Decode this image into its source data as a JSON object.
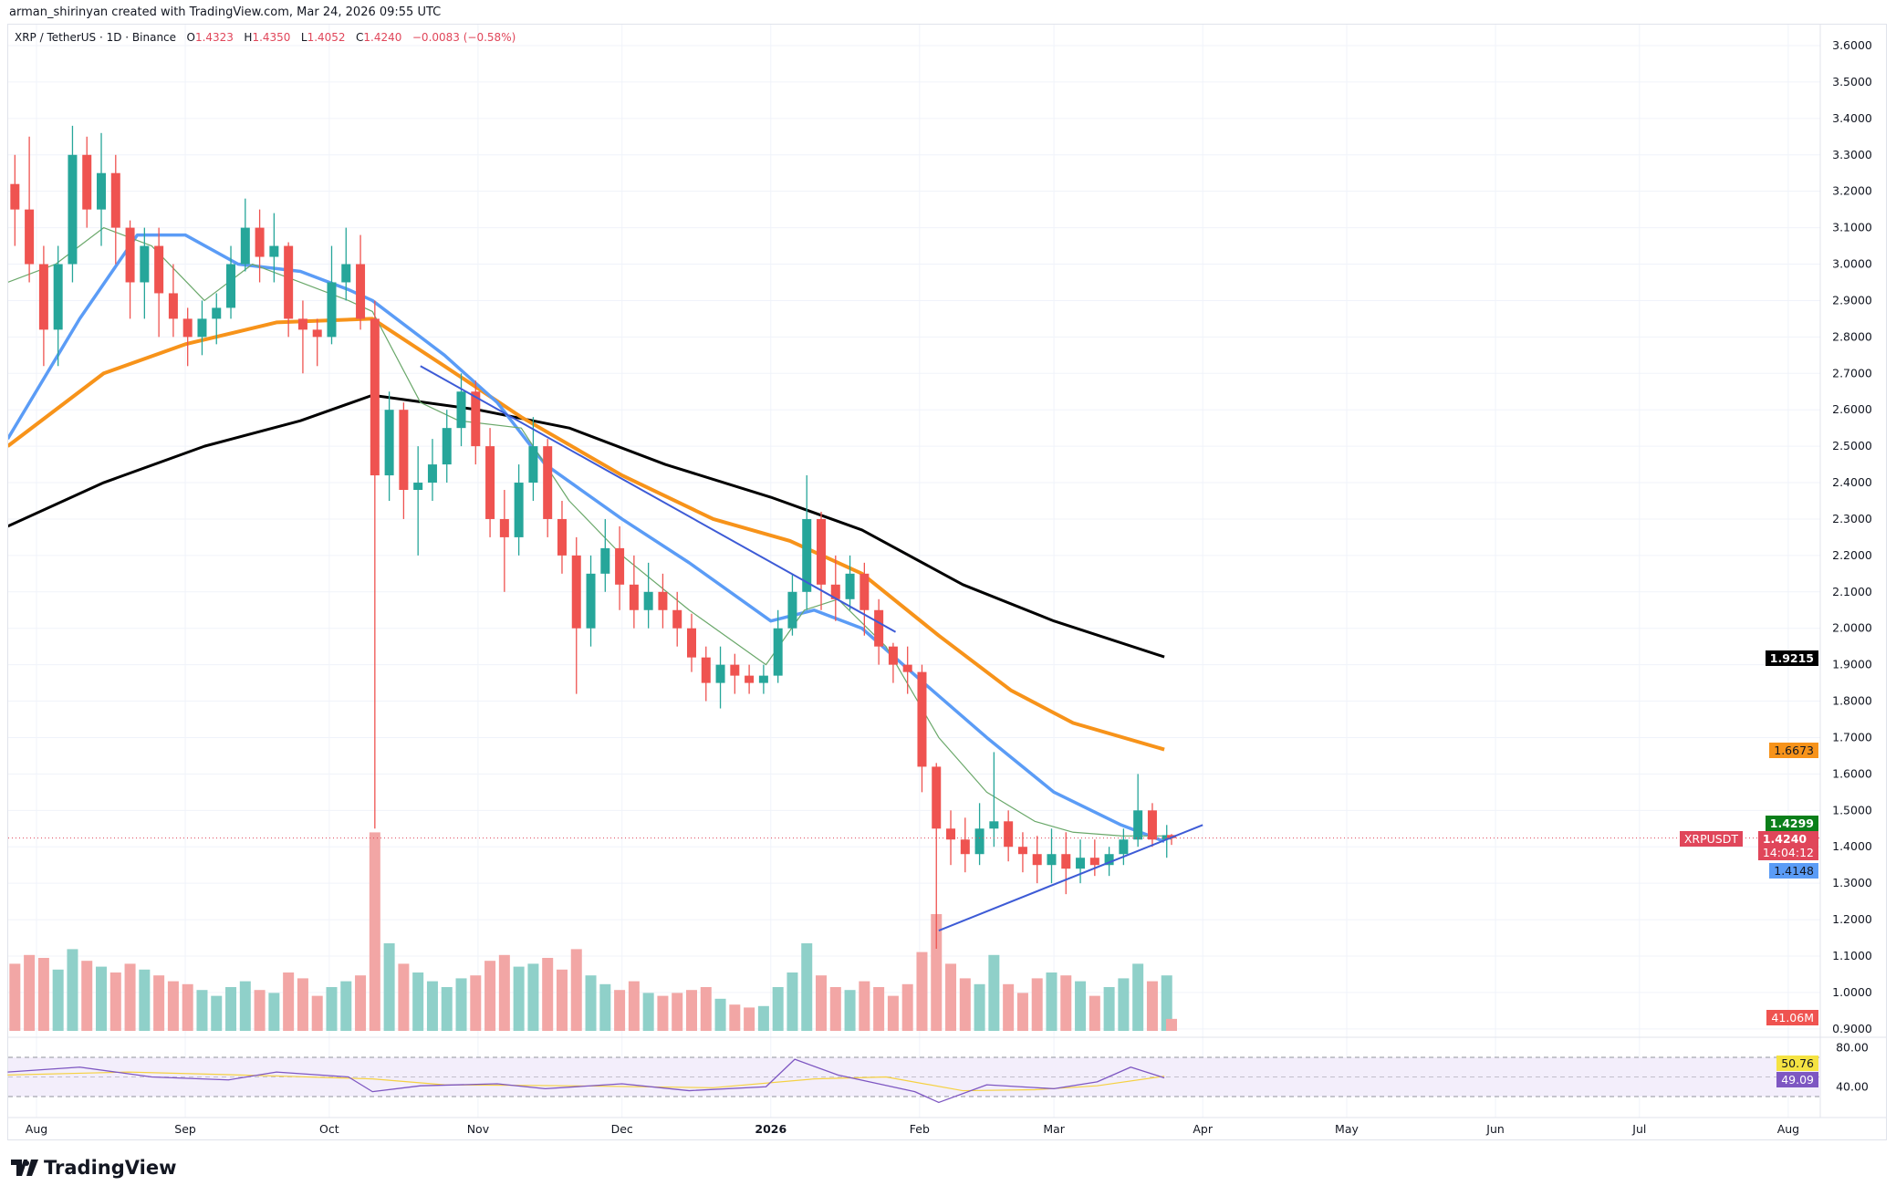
{
  "credit": "arman_shirinyan created with TradingView.com, Mar 24, 2026 09:55 UTC",
  "legend": {
    "symbol": "XRP / TetherUS · 1D · Binance",
    "o_label": "O",
    "o": "1.4323",
    "h_label": "H",
    "h": "1.4350",
    "l_label": "L",
    "l": "1.4052",
    "c_label": "C",
    "c": "1.4240",
    "change": "−0.0083 (−0.58%)"
  },
  "badges": {
    "ma200": "1.9215",
    "ma100": "1.6673",
    "ma20": "1.4299",
    "price": "1.4240",
    "countdown": "14:04:12",
    "ma50": "1.4148",
    "symbol_tag": "XRPUSDT",
    "volume": "41.06M",
    "rsi_ma": "50.76",
    "rsi": "49.09"
  },
  "brand": "TradingView",
  "colors": {
    "up": "#26a69a",
    "down": "#ef5350",
    "vol_up": "#8fd0c9",
    "vol_down": "#f2a6a5",
    "ma200": "#000000",
    "ma100": "#f7931a",
    "ma50": "#5b9cf6",
    "ma20": "#6aa86a",
    "trend": "#3d5bd6",
    "rsi": "#7e57c2",
    "rsi_ma": "#f5d142"
  },
  "chart_data": {
    "type": "candlestick",
    "symbol": "XRPUSDT",
    "price_ticks": [
      "3.6000",
      "3.5000",
      "3.4000",
      "3.3000",
      "3.2000",
      "3.1000",
      "3.0000",
      "2.9000",
      "2.8000",
      "2.7000",
      "2.6000",
      "2.5000",
      "2.4000",
      "2.3000",
      "2.2000",
      "2.1000",
      "2.0000",
      "1.9000",
      "1.8000",
      "1.7000",
      "1.6000",
      "1.5000",
      "1.4000",
      "1.3000",
      "1.2000",
      "1.1000",
      "1.0000",
      "0.9000"
    ],
    "ylim": [
      0.9,
      3.6
    ],
    "time_ticks": [
      {
        "label": "Aug",
        "date": "2025-08-01"
      },
      {
        "label": "Sep",
        "date": "2025-09-01"
      },
      {
        "label": "Oct",
        "date": "2025-10-01"
      },
      {
        "label": "Nov",
        "date": "2025-11-01"
      },
      {
        "label": "Dec",
        "date": "2025-12-01"
      },
      {
        "label": "2026",
        "date": "2026-01-01"
      },
      {
        "label": "Feb",
        "date": "2026-02-01"
      },
      {
        "label": "Mar",
        "date": "2026-03-01"
      },
      {
        "label": "Apr",
        "date": "2026-04-01"
      },
      {
        "label": "May",
        "date": "2026-05-01"
      },
      {
        "label": "Jun",
        "date": "2026-06-01"
      },
      {
        "label": "Jul",
        "date": "2026-07-01"
      },
      {
        "label": "Aug",
        "date": "2026-08-01"
      }
    ],
    "candles_columns": [
      "date",
      "open",
      "high",
      "low",
      "close",
      "volume_M"
    ],
    "candles": [
      [
        "2025-07-26",
        3.22,
        3.3,
        3.05,
        3.15,
        230
      ],
      [
        "2025-07-29",
        3.15,
        3.35,
        2.95,
        3.0,
        260
      ],
      [
        "2025-08-01",
        3.0,
        3.05,
        2.72,
        2.82,
        250
      ],
      [
        "2025-08-04",
        2.82,
        3.05,
        2.72,
        3.0,
        210
      ],
      [
        "2025-08-07",
        3.0,
        3.38,
        2.95,
        3.3,
        280
      ],
      [
        "2025-08-10",
        3.3,
        3.35,
        3.1,
        3.15,
        240
      ],
      [
        "2025-08-13",
        3.15,
        3.36,
        3.05,
        3.25,
        220
      ],
      [
        "2025-08-16",
        3.25,
        3.3,
        3.0,
        3.1,
        200
      ],
      [
        "2025-08-19",
        3.1,
        3.12,
        2.85,
        2.95,
        230
      ],
      [
        "2025-08-22",
        2.95,
        3.1,
        2.85,
        3.05,
        210
      ],
      [
        "2025-08-25",
        3.05,
        3.1,
        2.8,
        2.92,
        190
      ],
      [
        "2025-08-28",
        2.92,
        3.0,
        2.8,
        2.85,
        170
      ],
      [
        "2025-08-31",
        2.85,
        2.88,
        2.72,
        2.8,
        160
      ],
      [
        "2025-09-03",
        2.8,
        2.9,
        2.75,
        2.85,
        140
      ],
      [
        "2025-09-06",
        2.85,
        2.92,
        2.78,
        2.88,
        120
      ],
      [
        "2025-09-09",
        2.88,
        3.05,
        2.85,
        3.0,
        150
      ],
      [
        "2025-09-12",
        3.0,
        3.18,
        2.98,
        3.1,
        170
      ],
      [
        "2025-09-15",
        3.1,
        3.15,
        2.95,
        3.02,
        140
      ],
      [
        "2025-09-18",
        3.02,
        3.14,
        2.95,
        3.05,
        130
      ],
      [
        "2025-09-21",
        3.05,
        3.06,
        2.8,
        2.85,
        200
      ],
      [
        "2025-09-24",
        2.85,
        2.9,
        2.7,
        2.82,
        180
      ],
      [
        "2025-09-27",
        2.82,
        2.85,
        2.72,
        2.8,
        120
      ],
      [
        "2025-09-30",
        2.8,
        3.05,
        2.78,
        2.95,
        150
      ],
      [
        "2025-10-03",
        2.95,
        3.1,
        2.9,
        3.0,
        170
      ],
      [
        "2025-10-06",
        3.0,
        3.08,
        2.82,
        2.85,
        190
      ],
      [
        "2025-10-09",
        2.85,
        2.9,
        1.45,
        2.42,
        680
      ],
      [
        "2025-10-12",
        2.42,
        2.65,
        2.35,
        2.6,
        300
      ],
      [
        "2025-10-15",
        2.6,
        2.62,
        2.3,
        2.38,
        230
      ],
      [
        "2025-10-18",
        2.38,
        2.5,
        2.2,
        2.4,
        200
      ],
      [
        "2025-10-21",
        2.4,
        2.52,
        2.35,
        2.45,
        170
      ],
      [
        "2025-10-24",
        2.45,
        2.6,
        2.4,
        2.55,
        150
      ],
      [
        "2025-10-27",
        2.55,
        2.7,
        2.5,
        2.65,
        180
      ],
      [
        "2025-10-30",
        2.65,
        2.68,
        2.45,
        2.5,
        190
      ],
      [
        "2025-11-02",
        2.5,
        2.55,
        2.25,
        2.3,
        240
      ],
      [
        "2025-11-05",
        2.3,
        2.38,
        2.1,
        2.25,
        260
      ],
      [
        "2025-11-08",
        2.25,
        2.45,
        2.2,
        2.4,
        220
      ],
      [
        "2025-11-11",
        2.4,
        2.58,
        2.35,
        2.5,
        230
      ],
      [
        "2025-11-14",
        2.5,
        2.52,
        2.25,
        2.3,
        250
      ],
      [
        "2025-11-17",
        2.3,
        2.35,
        2.15,
        2.2,
        210
      ],
      [
        "2025-11-20",
        2.2,
        2.25,
        1.82,
        2.0,
        280
      ],
      [
        "2025-11-23",
        2.0,
        2.2,
        1.95,
        2.15,
        190
      ],
      [
        "2025-11-26",
        2.15,
        2.3,
        2.1,
        2.22,
        160
      ],
      [
        "2025-11-29",
        2.22,
        2.28,
        2.05,
        2.12,
        140
      ],
      [
        "2025-12-02",
        2.12,
        2.2,
        2.0,
        2.05,
        170
      ],
      [
        "2025-12-05",
        2.05,
        2.18,
        2.0,
        2.1,
        130
      ],
      [
        "2025-12-08",
        2.1,
        2.15,
        2.0,
        2.05,
        120
      ],
      [
        "2025-12-11",
        2.05,
        2.1,
        1.95,
        2.0,
        130
      ],
      [
        "2025-12-14",
        2.0,
        2.04,
        1.88,
        1.92,
        140
      ],
      [
        "2025-12-17",
        1.92,
        1.95,
        1.8,
        1.85,
        150
      ],
      [
        "2025-12-20",
        1.85,
        1.95,
        1.78,
        1.9,
        110
      ],
      [
        "2025-12-23",
        1.9,
        1.93,
        1.82,
        1.87,
        90
      ],
      [
        "2025-12-26",
        1.87,
        1.9,
        1.82,
        1.85,
        80
      ],
      [
        "2025-12-29",
        1.85,
        1.9,
        1.82,
        1.87,
        85
      ],
      [
        "2026-01-01",
        1.87,
        2.05,
        1.85,
        2.0,
        150
      ],
      [
        "2026-01-04",
        2.0,
        2.15,
        1.98,
        2.1,
        200
      ],
      [
        "2026-01-07",
        2.1,
        2.42,
        2.05,
        2.3,
        300
      ],
      [
        "2026-01-10",
        2.3,
        2.32,
        2.05,
        2.12,
        190
      ],
      [
        "2026-01-13",
        2.12,
        2.2,
        2.02,
        2.08,
        150
      ],
      [
        "2026-01-16",
        2.08,
        2.2,
        2.05,
        2.15,
        140
      ],
      [
        "2026-01-19",
        2.15,
        2.18,
        1.98,
        2.05,
        170
      ],
      [
        "2026-01-22",
        2.05,
        2.08,
        1.9,
        1.95,
        150
      ],
      [
        "2026-01-25",
        1.95,
        1.96,
        1.85,
        1.9,
        120
      ],
      [
        "2026-01-28",
        1.9,
        1.95,
        1.82,
        1.88,
        160
      ],
      [
        "2026-01-31",
        1.88,
        1.9,
        1.55,
        1.62,
        270
      ],
      [
        "2026-02-03",
        1.62,
        1.63,
        1.12,
        1.45,
        400
      ],
      [
        "2026-02-06",
        1.45,
        1.5,
        1.35,
        1.42,
        230
      ],
      [
        "2026-02-09",
        1.42,
        1.48,
        1.33,
        1.38,
        180
      ],
      [
        "2026-02-12",
        1.38,
        1.52,
        1.35,
        1.45,
        160
      ],
      [
        "2026-02-15",
        1.45,
        1.66,
        1.4,
        1.47,
        260
      ],
      [
        "2026-02-18",
        1.47,
        1.5,
        1.36,
        1.4,
        160
      ],
      [
        "2026-02-21",
        1.4,
        1.44,
        1.33,
        1.38,
        130
      ],
      [
        "2026-02-24",
        1.38,
        1.43,
        1.3,
        1.35,
        180
      ],
      [
        "2026-02-27",
        1.35,
        1.45,
        1.3,
        1.38,
        200
      ],
      [
        "2026-03-02",
        1.38,
        1.44,
        1.27,
        1.34,
        190
      ],
      [
        "2026-03-05",
        1.34,
        1.42,
        1.3,
        1.37,
        170
      ],
      [
        "2026-03-08",
        1.37,
        1.42,
        1.32,
        1.35,
        120
      ],
      [
        "2026-03-11",
        1.35,
        1.4,
        1.32,
        1.38,
        150
      ],
      [
        "2026-03-14",
        1.38,
        1.45,
        1.35,
        1.42,
        180
      ],
      [
        "2026-03-17",
        1.42,
        1.6,
        1.4,
        1.5,
        230
      ],
      [
        "2026-03-20",
        1.5,
        1.52,
        1.4,
        1.42,
        170
      ],
      [
        "2026-03-23",
        1.42,
        1.46,
        1.37,
        1.432,
        190
      ],
      [
        "2026-03-24",
        1.4323,
        1.435,
        1.4052,
        1.424,
        41.06
      ]
    ],
    "moving_averages": [
      {
        "id": "ma200",
        "points": [
          [
            "2025-07-26",
            2.28
          ],
          [
            "2025-08-15",
            2.4
          ],
          [
            "2025-09-05",
            2.5
          ],
          [
            "2025-09-25",
            2.57
          ],
          [
            "2025-10-10",
            2.64
          ],
          [
            "2025-11-01",
            2.6
          ],
          [
            "2025-11-20",
            2.55
          ],
          [
            "2025-12-10",
            2.45
          ],
          [
            "2026-01-01",
            2.36
          ],
          [
            "2026-01-20",
            2.27
          ],
          [
            "2026-02-10",
            2.12
          ],
          [
            "2026-03-01",
            2.02
          ],
          [
            "2026-03-24",
            1.9215
          ]
        ]
      },
      {
        "id": "ma100",
        "points": [
          [
            "2025-07-26",
            2.5
          ],
          [
            "2025-08-15",
            2.7
          ],
          [
            "2025-09-01",
            2.78
          ],
          [
            "2025-09-20",
            2.84
          ],
          [
            "2025-10-10",
            2.85
          ],
          [
            "2025-10-25",
            2.72
          ],
          [
            "2025-11-10",
            2.58
          ],
          [
            "2025-12-01",
            2.42
          ],
          [
            "2025-12-20",
            2.3
          ],
          [
            "2026-01-05",
            2.24
          ],
          [
            "2026-01-20",
            2.15
          ],
          [
            "2026-02-05",
            1.98
          ],
          [
            "2026-02-20",
            1.83
          ],
          [
            "2026-03-05",
            1.74
          ],
          [
            "2026-03-24",
            1.6673
          ]
        ]
      },
      {
        "id": "ma50",
        "points": [
          [
            "2025-07-26",
            2.52
          ],
          [
            "2025-08-10",
            2.85
          ],
          [
            "2025-08-22",
            3.08
          ],
          [
            "2025-09-01",
            3.08
          ],
          [
            "2025-09-12",
            3.0
          ],
          [
            "2025-09-25",
            2.98
          ],
          [
            "2025-10-05",
            2.93
          ],
          [
            "2025-10-10",
            2.9
          ],
          [
            "2025-10-25",
            2.75
          ],
          [
            "2025-11-05",
            2.62
          ],
          [
            "2025-11-15",
            2.45
          ],
          [
            "2025-12-01",
            2.3
          ],
          [
            "2025-12-15",
            2.18
          ],
          [
            "2026-01-01",
            2.02
          ],
          [
            "2026-01-10",
            2.05
          ],
          [
            "2026-01-20",
            2.0
          ],
          [
            "2026-02-01",
            1.86
          ],
          [
            "2026-02-15",
            1.7
          ],
          [
            "2026-03-01",
            1.55
          ],
          [
            "2026-03-15",
            1.46
          ],
          [
            "2026-03-24",
            1.4148
          ]
        ]
      },
      {
        "id": "ma20",
        "points": [
          [
            "2025-07-26",
            2.95
          ],
          [
            "2025-08-05",
            3.0
          ],
          [
            "2025-08-15",
            3.1
          ],
          [
            "2025-08-25",
            3.05
          ],
          [
            "2025-09-05",
            2.9
          ],
          [
            "2025-09-15",
            3.0
          ],
          [
            "2025-09-25",
            2.95
          ],
          [
            "2025-10-05",
            2.9
          ],
          [
            "2025-10-10",
            2.87
          ],
          [
            "2025-10-20",
            2.62
          ],
          [
            "2025-10-28",
            2.57
          ],
          [
            "2025-11-10",
            2.55
          ],
          [
            "2025-11-20",
            2.35
          ],
          [
            "2025-12-01",
            2.2
          ],
          [
            "2025-12-15",
            2.05
          ],
          [
            "2025-12-31",
            1.9
          ],
          [
            "2026-01-08",
            2.05
          ],
          [
            "2026-01-15",
            2.08
          ],
          [
            "2026-01-25",
            1.95
          ],
          [
            "2026-02-05",
            1.7
          ],
          [
            "2026-02-15",
            1.55
          ],
          [
            "2026-02-25",
            1.47
          ],
          [
            "2026-03-05",
            1.44
          ],
          [
            "2026-03-15",
            1.43
          ],
          [
            "2026-03-24",
            1.4299
          ]
        ]
      }
    ],
    "trendlines": [
      {
        "id": "descending-resistance",
        "from": [
          "2025-10-20",
          2.72
        ],
        "to": [
          "2026-01-27",
          1.99
        ]
      },
      {
        "id": "ascending-support",
        "from": [
          "2026-02-05",
          1.17
        ],
        "to": [
          "2026-04-01",
          1.46
        ]
      }
    ],
    "current_price": 1.424,
    "rsi": {
      "ticks": [
        "80.00",
        "40.00"
      ],
      "bands": [
        70,
        50,
        30
      ],
      "value": 49.09,
      "ma_value": 50.76,
      "points": [
        [
          "2025-07-26",
          55
        ],
        [
          "2025-08-10",
          60
        ],
        [
          "2025-08-25",
          50
        ],
        [
          "2025-09-10",
          47
        ],
        [
          "2025-09-20",
          55
        ],
        [
          "2025-10-05",
          50
        ],
        [
          "2025-10-10",
          35
        ],
        [
          "2025-10-20",
          41
        ],
        [
          "2025-11-05",
          43
        ],
        [
          "2025-11-15",
          38
        ],
        [
          "2025-12-01",
          43
        ],
        [
          "2025-12-15",
          36
        ],
        [
          "2025-12-31",
          40
        ],
        [
          "2026-01-06",
          68
        ],
        [
          "2026-01-15",
          52
        ],
        [
          "2026-01-31",
          35
        ],
        [
          "2026-02-05",
          24
        ],
        [
          "2026-02-15",
          42
        ],
        [
          "2026-03-01",
          38
        ],
        [
          "2026-03-10",
          45
        ],
        [
          "2026-03-17",
          60
        ],
        [
          "2026-03-24",
          49.09
        ]
      ],
      "ma_points": [
        [
          "2025-07-26",
          52
        ],
        [
          "2025-08-20",
          55
        ],
        [
          "2025-09-20",
          51
        ],
        [
          "2025-10-10",
          48
        ],
        [
          "2025-10-25",
          42
        ],
        [
          "2025-11-20",
          41
        ],
        [
          "2025-12-20",
          39
        ],
        [
          "2026-01-10",
          48
        ],
        [
          "2026-01-25",
          50
        ],
        [
          "2026-02-10",
          36
        ],
        [
          "2026-02-25",
          37
        ],
        [
          "2026-03-10",
          41
        ],
        [
          "2026-03-24",
          50.76
        ]
      ]
    }
  }
}
